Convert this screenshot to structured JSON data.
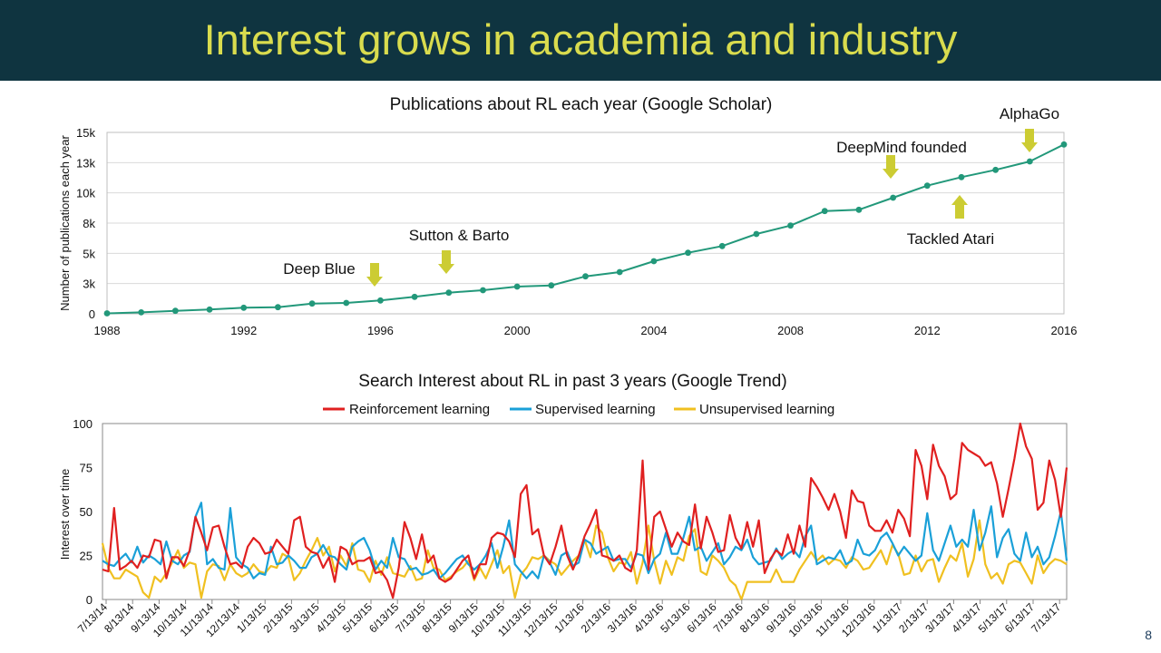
{
  "slide": {
    "title": "Interest grows in academia and industry",
    "title_color": "#d9dc4e",
    "header_bg": "#0f3440",
    "page_number": "8"
  },
  "chart_data": [
    {
      "type": "line",
      "title": "Publications about RL each year (Google Scholar)",
      "xlabel": "",
      "ylabel": "Number of publications each year",
      "x": [
        1988,
        1989,
        1990,
        1991,
        1992,
        1993,
        1994,
        1995,
        1996,
        1997,
        1998,
        1999,
        2000,
        2001,
        2002,
        2003,
        2004,
        2005,
        2006,
        2007,
        2008,
        2009,
        2010,
        2011,
        2012,
        2013,
        2014,
        2015,
        2016
      ],
      "values": [
        40,
        120,
        250,
        350,
        500,
        550,
        850,
        900,
        1100,
        1400,
        1750,
        1950,
        2250,
        2350,
        3100,
        3450,
        4350,
        5050,
        5600,
        6600,
        7300,
        8500,
        8600,
        9600,
        10600,
        11300,
        11900,
        12600,
        14000
      ],
      "xlim": [
        1988,
        2016
      ],
      "ylim": [
        0,
        15000
      ],
      "xticks": [
        1988,
        1992,
        1996,
        2000,
        2004,
        2008,
        2012,
        2016
      ],
      "yticks": [
        0,
        2500,
        5000,
        7500,
        10000,
        12500,
        15000
      ],
      "ytick_labels": [
        "0",
        "3k",
        "5k",
        "8k",
        "10k",
        "13k",
        "15k"
      ],
      "line_color": "#22987a",
      "annotations": [
        {
          "label": "Deep Blue",
          "x": 1996,
          "arrow": "down"
        },
        {
          "label": "Sutton & Barto",
          "x": 1998,
          "arrow": "down"
        },
        {
          "label": "DeepMind founded",
          "x": 2011,
          "arrow": "down"
        },
        {
          "label": "Tackled Atari",
          "x": 2013,
          "arrow": "up"
        },
        {
          "label": "AlphaGo",
          "x": 2015,
          "arrow": "down"
        }
      ],
      "arrow_color": "#cccc33"
    },
    {
      "type": "line",
      "title": "Search Interest about RL in past 3 years (Google Trend)",
      "xlabel": "",
      "ylabel": "Interest over time",
      "ylim": [
        0,
        100
      ],
      "yticks": [
        0,
        25,
        50,
        75,
        100
      ],
      "xtick_labels": [
        "7/13/14",
        "8/13/14",
        "9/13/14",
        "10/13/14",
        "11/13/14",
        "12/13/14",
        "1/13/15",
        "2/13/15",
        "3/13/15",
        "4/13/15",
        "5/13/15",
        "6/13/15",
        "7/13/15",
        "8/13/15",
        "9/13/15",
        "10/13/15",
        "11/13/15",
        "12/13/15",
        "1/13/16",
        "2/13/16",
        "3/13/16",
        "4/13/16",
        "5/13/16",
        "6/13/16",
        "7/13/16",
        "8/13/16",
        "9/13/16",
        "10/13/16",
        "11/13/16",
        "12/13/16",
        "1/13/17",
        "2/13/17",
        "3/13/17",
        "4/13/17",
        "5/13/17",
        "6/13/17",
        "7/13/17"
      ],
      "legend_position": "top-center",
      "series": [
        {
          "name": "Reinforcement learning",
          "color": "#e02020",
          "values": [
            17,
            16,
            52,
            17,
            19,
            22,
            18,
            25,
            24,
            34,
            33,
            12,
            24,
            24,
            19,
            28,
            47,
            38,
            28,
            41,
            42,
            30,
            20,
            21,
            18,
            30,
            35,
            32,
            26,
            27,
            34,
            30,
            26,
            45,
            47,
            30,
            27,
            26,
            18,
            24,
            10,
            30,
            28,
            20,
            22,
            22,
            24,
            15,
            16,
            11,
            1,
            18,
            44,
            35,
            23,
            37,
            21,
            25,
            12,
            10,
            12,
            17,
            22,
            25,
            12,
            20,
            20,
            35,
            38,
            37,
            33,
            24,
            60,
            65,
            37,
            40,
            25,
            20,
            30,
            42,
            25,
            17,
            25,
            36,
            43,
            51,
            25,
            24,
            22,
            25,
            18,
            16,
            28,
            79,
            17,
            47,
            50,
            40,
            30,
            38,
            33,
            31,
            54,
            29,
            47,
            38,
            27,
            28,
            48,
            35,
            29,
            44,
            30,
            45,
            15,
            23,
            28,
            25,
            37,
            26,
            42,
            30,
            69,
            64,
            58,
            51,
            60,
            50,
            35,
            62,
            56,
            55,
            42,
            39,
            39,
            45,
            38,
            51,
            46,
            36,
            85,
            76,
            57,
            88,
            76,
            70,
            57,
            60,
            89,
            85,
            83,
            81,
            76,
            78,
            66,
            47,
            63,
            80,
            100,
            87,
            80,
            51,
            55,
            79,
            68,
            47,
            75
          ]
        },
        {
          "name": "Supervised learning",
          "color": "#1aa0d8",
          "values": [
            22,
            20,
            19,
            23,
            26,
            21,
            30,
            21,
            25,
            23,
            20,
            33,
            22,
            20,
            25,
            27,
            47,
            55,
            20,
            23,
            18,
            17,
            52,
            24,
            20,
            18,
            12,
            15,
            14,
            30,
            20,
            21,
            25,
            22,
            18,
            18,
            24,
            26,
            31,
            25,
            24,
            20,
            17,
            30,
            33,
            35,
            28,
            17,
            22,
            18,
            35,
            24,
            23,
            17,
            18,
            14,
            15,
            17,
            12,
            15,
            19,
            23,
            25,
            20,
            17,
            20,
            25,
            32,
            18,
            30,
            45,
            20,
            16,
            12,
            16,
            12,
            25,
            21,
            14,
            25,
            27,
            19,
            21,
            34,
            32,
            26,
            28,
            30,
            22,
            23,
            23,
            18,
            26,
            25,
            15,
            23,
            26,
            38,
            26,
            26,
            35,
            47,
            28,
            30,
            22,
            27,
            32,
            20,
            24,
            30,
            28,
            34,
            24,
            20,
            21,
            22,
            29,
            23,
            26,
            28,
            24,
            36,
            42,
            20,
            22,
            24,
            23,
            28,
            20,
            22,
            34,
            26,
            25,
            28,
            35,
            38,
            32,
            25,
            30,
            26,
            22,
            25,
            49,
            28,
            22,
            32,
            42,
            30,
            34,
            30,
            51,
            28,
            38,
            53,
            24,
            35,
            40,
            26,
            22,
            38,
            24,
            30,
            20,
            24,
            36,
            50,
            22
          ]
        },
        {
          "name": "Unsupervised learning",
          "color": "#f0c020",
          "values": [
            32,
            18,
            12,
            12,
            17,
            15,
            13,
            4,
            1,
            13,
            10,
            15,
            21,
            28,
            18,
            21,
            20,
            1,
            16,
            20,
            19,
            11,
            20,
            15,
            13,
            15,
            20,
            16,
            15,
            19,
            18,
            26,
            24,
            11,
            15,
            22,
            28,
            35,
            25,
            30,
            16,
            25,
            19,
            32,
            17,
            16,
            10,
            22,
            14,
            24,
            15,
            14,
            13,
            19,
            11,
            12,
            28,
            18,
            17,
            11,
            13,
            16,
            18,
            22,
            11,
            18,
            12,
            20,
            28,
            15,
            19,
            1,
            14,
            18,
            24,
            23,
            25,
            22,
            20,
            14,
            18,
            22,
            25,
            34,
            24,
            42,
            38,
            24,
            16,
            21,
            20,
            27,
            9,
            21,
            42,
            22,
            9,
            22,
            14,
            24,
            22,
            36,
            40,
            16,
            14,
            25,
            22,
            18,
            11,
            8,
            0,
            10,
            10,
            10,
            10,
            10,
            17,
            10,
            10,
            10,
            17,
            22,
            27,
            22,
            25,
            20,
            23,
            22,
            18,
            24,
            22,
            17,
            18,
            23,
            28,
            20,
            31,
            26,
            14,
            15,
            25,
            16,
            22,
            23,
            10,
            18,
            25,
            22,
            32,
            13,
            23,
            45,
            20,
            12,
            15,
            9,
            20,
            22,
            21,
            15,
            9,
            25,
            15,
            20,
            23,
            22,
            20
          ]
        }
      ]
    }
  ]
}
